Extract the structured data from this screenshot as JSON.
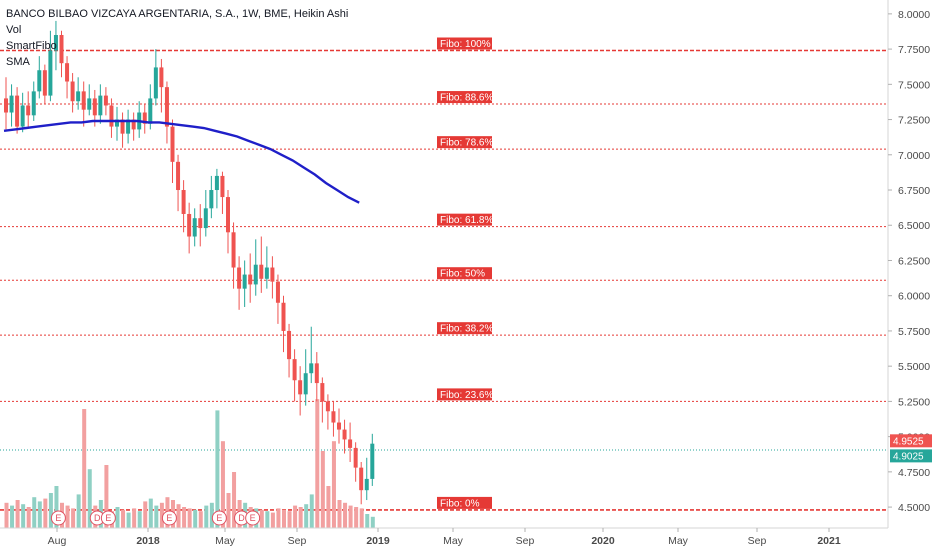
{
  "legend": {
    "title": "BANCO BILBAO VIZCAYA ARGENTARIA, S.A., 1W, BME, Heikin Ashi",
    "vol": "Vol",
    "smartfibo": "SmartFibo",
    "sma": "SMA"
  },
  "colors": {
    "up": "#26a69a",
    "down": "#ef5350",
    "fibo_line": "#e53935",
    "sma": "#1f1fc8",
    "vol_up": "#8fd0c4",
    "vol_down": "#f2a0a0",
    "price_tag_red": "#ef5350",
    "price_tag_green": "#26a69a"
  },
  "chart_data": {
    "type": "candlestick",
    "style": "Heikin Ashi",
    "title": "BANCO BILBAO VIZCAYA ARGENTARIA, S.A., 1W, BME, Heikin Ashi",
    "y_ticks": [
      "8.0000",
      "7.7500",
      "7.5000",
      "7.2500",
      "7.0000",
      "6.7500",
      "6.5000",
      "6.2500",
      "6.0000",
      "5.7500",
      "5.5000",
      "5.2500",
      "5.0000",
      "4.7500",
      "4.5000"
    ],
    "ylim": [
      4.38,
      8.07
    ],
    "x_ticks": [
      "Aug",
      "2018",
      "May",
      "Sep",
      "2019",
      "May",
      "Sep",
      "2020",
      "May",
      "Sep",
      "2021"
    ],
    "fibo_levels": [
      {
        "label": "Fibo:  100%",
        "value": 7.74
      },
      {
        "label": "Fibo: 88.6%",
        "value": 7.36
      },
      {
        "label": "Fibo: 78.6%",
        "value": 7.04
      },
      {
        "label": "Fibo: 61.8%",
        "value": 6.49
      },
      {
        "label": "Fibo:   50%",
        "value": 6.11
      },
      {
        "label": "Fibo: 38.2%",
        "value": 5.72
      },
      {
        "label": "Fibo: 23.6%",
        "value": 5.25
      },
      {
        "label": "Fibo:    0%",
        "value": 4.48
      }
    ],
    "price_tags": [
      {
        "label": "4.9525",
        "value": 4.9525,
        "color": "#ef5350"
      },
      {
        "label": "4.9025",
        "value": 4.9025,
        "color": "#26a69a"
      }
    ],
    "last_price_line": 4.905,
    "candle_span": {
      "first_week": 0,
      "last_week": 80
    },
    "candles": [
      [
        7.4,
        7.3,
        7.55,
        7.18
      ],
      [
        7.3,
        7.42,
        7.5,
        7.2
      ],
      [
        7.42,
        7.2,
        7.48,
        7.15
      ],
      [
        7.2,
        7.35,
        7.44,
        7.16
      ],
      [
        7.35,
        7.28,
        7.45,
        7.2
      ],
      [
        7.28,
        7.45,
        7.52,
        7.24
      ],
      [
        7.45,
        7.6,
        7.7,
        7.4
      ],
      [
        7.6,
        7.42,
        7.64,
        7.36
      ],
      [
        7.42,
        7.74,
        7.88,
        7.38
      ],
      [
        7.74,
        7.85,
        7.95,
        7.6
      ],
      [
        7.85,
        7.65,
        7.88,
        7.55
      ],
      [
        7.65,
        7.52,
        7.7,
        7.4
      ],
      [
        7.52,
        7.38,
        7.58,
        7.3
      ],
      [
        7.38,
        7.45,
        7.55,
        7.32
      ],
      [
        7.45,
        7.32,
        7.52,
        7.2
      ],
      [
        7.32,
        7.4,
        7.5,
        7.28
      ],
      [
        7.4,
        7.28,
        7.46,
        7.2
      ],
      [
        7.28,
        7.42,
        7.5,
        7.22
      ],
      [
        7.42,
        7.35,
        7.48,
        7.28
      ],
      [
        7.35,
        7.2,
        7.4,
        7.12
      ],
      [
        7.2,
        7.25,
        7.34,
        7.1
      ],
      [
        7.25,
        7.15,
        7.3,
        7.05
      ],
      [
        7.15,
        7.25,
        7.32,
        7.08
      ],
      [
        7.25,
        7.18,
        7.3,
        7.1
      ],
      [
        7.18,
        7.3,
        7.38,
        7.12
      ],
      [
        7.3,
        7.22,
        7.36,
        7.15
      ],
      [
        7.22,
        7.4,
        7.5,
        7.18
      ],
      [
        7.4,
        7.62,
        7.75,
        7.35
      ],
      [
        7.62,
        7.48,
        7.68,
        7.3
      ],
      [
        7.48,
        7.2,
        7.52,
        7.08
      ],
      [
        7.2,
        6.95,
        7.25,
        6.8
      ],
      [
        6.95,
        6.75,
        7.0,
        6.6
      ],
      [
        6.75,
        6.58,
        6.82,
        6.45
      ],
      [
        6.58,
        6.42,
        6.66,
        6.3
      ],
      [
        6.42,
        6.55,
        6.62,
        6.35
      ],
      [
        6.55,
        6.48,
        6.65,
        6.35
      ],
      [
        6.48,
        6.62,
        6.75,
        6.42
      ],
      [
        6.62,
        6.75,
        6.85,
        6.55
      ],
      [
        6.75,
        6.85,
        6.9,
        6.62
      ],
      [
        6.85,
        6.7,
        6.88,
        6.58
      ],
      [
        6.7,
        6.45,
        6.75,
        6.3
      ],
      [
        6.45,
        6.2,
        6.52,
        6.05
      ],
      [
        6.2,
        6.05,
        6.28,
        5.9
      ],
      [
        6.05,
        6.15,
        6.25,
        5.92
      ],
      [
        6.15,
        6.08,
        6.3,
        5.95
      ],
      [
        6.08,
        6.22,
        6.4,
        6.0
      ],
      [
        6.22,
        6.12,
        6.42,
        6.02
      ],
      [
        6.12,
        6.2,
        6.35,
        6.05
      ],
      [
        6.2,
        6.1,
        6.28,
        5.98
      ],
      [
        6.1,
        5.95,
        6.15,
        5.8
      ],
      [
        5.95,
        5.75,
        6.0,
        5.6
      ],
      [
        5.75,
        5.55,
        5.8,
        5.42
      ],
      [
        5.55,
        5.4,
        5.62,
        5.25
      ],
      [
        5.4,
        5.3,
        5.5,
        5.15
      ],
      [
        5.3,
        5.45,
        5.62,
        5.22
      ],
      [
        5.45,
        5.52,
        5.78,
        5.38
      ],
      [
        5.52,
        5.38,
        5.6,
        5.25
      ],
      [
        5.38,
        5.25,
        5.42,
        5.1
      ],
      [
        5.25,
        5.18,
        5.3,
        5.05
      ],
      [
        5.18,
        5.1,
        5.25,
        5.0
      ],
      [
        5.1,
        5.05,
        5.2,
        4.95
      ],
      [
        5.05,
        4.98,
        5.12,
        4.88
      ],
      [
        4.98,
        4.92,
        5.1,
        4.82
      ],
      [
        4.92,
        4.78,
        4.96,
        4.68
      ],
      [
        4.78,
        4.62,
        4.82,
        4.52
      ],
      [
        4.62,
        4.7,
        4.85,
        4.55
      ],
      [
        4.7,
        4.95,
        5.02,
        4.65
      ]
    ],
    "sma": [
      7.17,
      7.18,
      7.19,
      7.2,
      7.21,
      7.22,
      7.23,
      7.23,
      7.24,
      7.24,
      7.24,
      7.24,
      7.24,
      7.23,
      7.23,
      7.22,
      7.21,
      7.2,
      7.19,
      7.17,
      7.15,
      7.13,
      7.1,
      7.07,
      7.04,
      7.0,
      6.96,
      6.91,
      6.86,
      6.8,
      6.75,
      6.7,
      6.66
    ],
    "sma_start_week": 0,
    "sma_step_weeks": 2,
    "volume": [
      0.18,
      0.16,
      0.2,
      0.17,
      0.15,
      0.22,
      0.19,
      0.21,
      0.25,
      0.3,
      0.18,
      0.16,
      0.14,
      0.24,
      0.85,
      0.42,
      0.16,
      0.2,
      0.45,
      0.12,
      0.15,
      0.13,
      0.11,
      0.14,
      0.12,
      0.19,
      0.21,
      0.16,
      0.18,
      0.22,
      0.2,
      0.17,
      0.15,
      0.14,
      0.13,
      0.12,
      0.16,
      0.18,
      0.84,
      0.62,
      0.25,
      0.4,
      0.2,
      0.18,
      0.15,
      0.14,
      0.13,
      0.12,
      0.11,
      0.14,
      0.13,
      0.12,
      0.16,
      0.15,
      0.17,
      0.24,
      0.92,
      0.55,
      0.3,
      0.62,
      0.2,
      0.18,
      0.16,
      0.15,
      0.14,
      0.1,
      0.08
    ],
    "events": [
      {
        "label": "E",
        "week": 8
      },
      {
        "label": "D",
        "week": 15
      },
      {
        "label": "E",
        "week": 17
      },
      {
        "label": "E",
        "week": 28
      },
      {
        "label": "E",
        "week": 37
      },
      {
        "label": "D",
        "week": 41
      },
      {
        "label": "E",
        "week": 43
      }
    ]
  }
}
